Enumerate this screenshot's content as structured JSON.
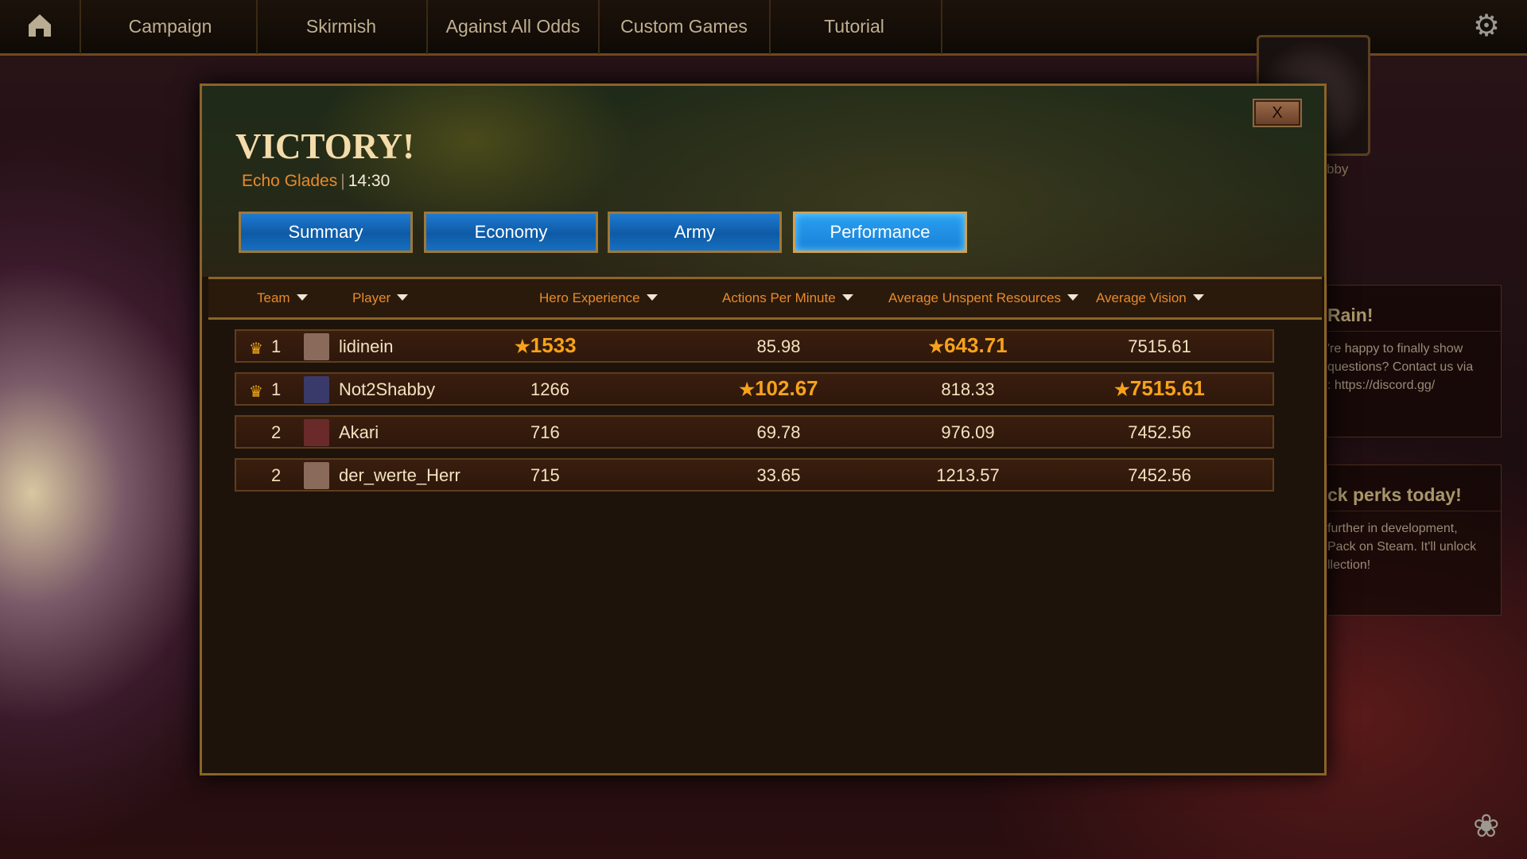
{
  "nav": {
    "items": [
      "Campaign",
      "Skirmish",
      "Against All Odds",
      "Custom Games",
      "Tutorial"
    ],
    "home_icon": "home-icon",
    "settings_icon": "gear-icon"
  },
  "side": {
    "name_fragment": "bby",
    "cards": [
      {
        "title": "Rain!",
        "lines": [
          "'re happy to finally show",
          "questions? Contact us via",
          ": https://discord.gg/"
        ]
      },
      {
        "title": "ck perks today!",
        "lines": [
          "further in development,",
          "Pack on Steam. It'll unlock",
          "llection!"
        ]
      }
    ]
  },
  "dialog": {
    "title": "VICTORY!",
    "map": "Echo Glades",
    "separator": "|",
    "duration": "14:30",
    "close_label": "X",
    "tabs": [
      {
        "label": "Summary",
        "active": false
      },
      {
        "label": "Economy",
        "active": false
      },
      {
        "label": "Army",
        "active": false
      },
      {
        "label": "Performance",
        "active": true
      }
    ],
    "columns": [
      "Team",
      "Player",
      "Hero Experience",
      "Actions Per Minute",
      "Average Unspent Resources",
      "Average Vision"
    ],
    "rows": [
      {
        "team": "1",
        "winner": true,
        "player": "lidinein",
        "avatar_color": "#8a6a5a",
        "values": [
          "1533",
          "85.98",
          "643.71",
          "7515.61"
        ],
        "best": [
          true,
          false,
          true,
          false
        ]
      },
      {
        "team": "1",
        "winner": true,
        "player": "Not2Shabby",
        "avatar_color": "#3a3a6a",
        "values": [
          "1266",
          "102.67",
          "818.33",
          "7515.61"
        ],
        "best": [
          false,
          true,
          false,
          true
        ]
      },
      {
        "team": "2",
        "winner": false,
        "player": "Akari",
        "avatar_color": "#6a2a2a",
        "values": [
          "716",
          "69.78",
          "976.09",
          "7452.56"
        ],
        "best": [
          false,
          false,
          false,
          false
        ]
      },
      {
        "team": "2",
        "winner": false,
        "player": "der_werte_Herr",
        "avatar_color": "#8a6a5a",
        "values": [
          "715",
          "33.65",
          "1213.57",
          "7452.56"
        ],
        "best": [
          false,
          false,
          false,
          false
        ]
      }
    ],
    "colors": {
      "header": "#e88a2a",
      "best": "#f7a21b",
      "text": "#f2e2c0",
      "tab": "#1670c0"
    }
  }
}
